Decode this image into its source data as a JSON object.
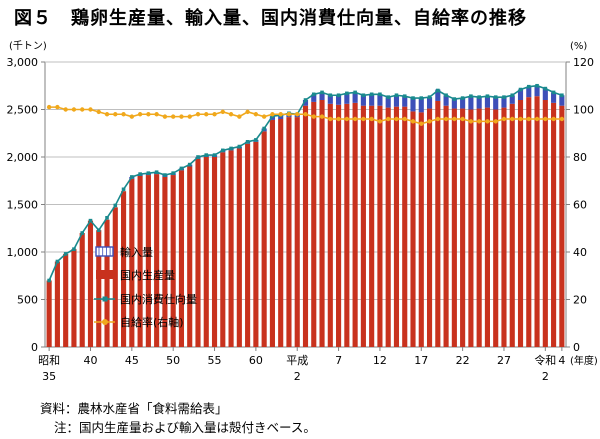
{
  "figure": {
    "title": "図５　鶏卵生産量、輸入量、国内消費仕向量、自給率の推移",
    "source_label": "資料：",
    "source_text": "農林水産省「食料需給表」",
    "note_label": "注：",
    "note_text": "国内生産量および輸入量は殻付きベース。"
  },
  "colors": {
    "production": "#c8321e",
    "imports": "#3d4fb8",
    "consumption": "#1a8a8e",
    "self_sufficiency": "#f0a81c",
    "grid": "#bfbfbf",
    "axis": "#808080"
  },
  "chart_data": {
    "type": "bar",
    "stacked": true,
    "years_label_note": "Japanese fiscal years from Showa 35 (1960) to Reiwa 4 (2022)",
    "x": [
      1960,
      1961,
      1962,
      1963,
      1964,
      1965,
      1966,
      1967,
      1968,
      1969,
      1970,
      1971,
      1972,
      1973,
      1974,
      1975,
      1976,
      1977,
      1978,
      1979,
      1980,
      1981,
      1982,
      1983,
      1984,
      1985,
      1986,
      1987,
      1988,
      1989,
      1990,
      1991,
      1992,
      1993,
      1994,
      1995,
      1996,
      1997,
      1998,
      1999,
      2000,
      2001,
      2002,
      2003,
      2004,
      2005,
      2006,
      2007,
      2008,
      2009,
      2010,
      2011,
      2012,
      2013,
      2014,
      2015,
      2016,
      2017,
      2018,
      2019,
      2020,
      2021,
      2022
    ],
    "xtick_labels": [
      {
        "x": 1960,
        "line1": "昭和",
        "line2": "35"
      },
      {
        "x": 1965,
        "line1": "40",
        "line2": ""
      },
      {
        "x": 1970,
        "line1": "45",
        "line2": ""
      },
      {
        "x": 1975,
        "line1": "50",
        "line2": ""
      },
      {
        "x": 1980,
        "line1": "55",
        "line2": ""
      },
      {
        "x": 1985,
        "line1": "60",
        "line2": ""
      },
      {
        "x": 1990,
        "line1": "平成",
        "line2": "2"
      },
      {
        "x": 1995,
        "line1": "7",
        "line2": ""
      },
      {
        "x": 2000,
        "line1": "12",
        "line2": ""
      },
      {
        "x": 2005,
        "line1": "17",
        "line2": ""
      },
      {
        "x": 2010,
        "line1": "22",
        "line2": ""
      },
      {
        "x": 2015,
        "line1": "27",
        "line2": ""
      },
      {
        "x": 2020,
        "line1": "令和",
        "line2": "2"
      },
      {
        "x": 2022,
        "line1": "4",
        "line2": ""
      }
    ],
    "xlabel": "(年度)",
    "ylabel_left": "(千トン)",
    "ylabel_right": "(%)",
    "ylim_left": [
      0,
      3000
    ],
    "yticks_left": [
      0,
      500,
      1000,
      1500,
      2000,
      2500,
      3000
    ],
    "ytick_labels_left": [
      "0",
      "500",
      "1,000",
      "1,500",
      "2,000",
      "2,500",
      "3,000"
    ],
    "ylim_right": [
      0,
      120
    ],
    "yticks_right": [
      0,
      20,
      40,
      60,
      80,
      100,
      120
    ],
    "ytick_labels_right": [
      "0",
      "20",
      "40",
      "60",
      "80",
      "100",
      "120"
    ],
    "grid": true,
    "legend_position": "bottom-left",
    "series": [
      {
        "name": "輸入量",
        "type": "bar",
        "axis": "left",
        "values": [
          0,
          0,
          0,
          0,
          0,
          0,
          0,
          0,
          0,
          0,
          20,
          20,
          20,
          20,
          20,
          20,
          20,
          20,
          20,
          20,
          20,
          20,
          20,
          20,
          20,
          20,
          30,
          40,
          40,
          40,
          40,
          60,
          80,
          80,
          90,
          100,
          110,
          110,
          110,
          120,
          120,
          110,
          120,
          110,
          140,
          150,
          120,
          120,
          110,
          100,
          110,
          140,
          120,
          120,
          130,
          110,
          90,
          110,
          110,
          110,
          120,
          110,
          110
        ]
      },
      {
        "name": "国内生産量",
        "type": "bar",
        "axis": "left",
        "values": [
          700,
          900,
          980,
          1030,
          1200,
          1330,
          1230,
          1340,
          1470,
          1640,
          1770,
          1800,
          1810,
          1820,
          1790,
          1810,
          1860,
          1900,
          1980,
          2000,
          2000,
          2050,
          2070,
          2090,
          2140,
          2160,
          2270,
          2390,
          2400,
          2420,
          2420,
          2540,
          2580,
          2600,
          2560,
          2550,
          2560,
          2570,
          2540,
          2540,
          2540,
          2520,
          2530,
          2530,
          2480,
          2470,
          2510,
          2590,
          2540,
          2510,
          2510,
          2500,
          2510,
          2520,
          2500,
          2520,
          2560,
          2600,
          2630,
          2640,
          2600,
          2570,
          2540
        ]
      },
      {
        "name": "国内消費仕向量",
        "type": "line",
        "axis": "left",
        "values": [
          700,
          900,
          980,
          1030,
          1200,
          1330,
          1230,
          1360,
          1490,
          1660,
          1790,
          1820,
          1830,
          1840,
          1810,
          1830,
          1880,
          1920,
          2000,
          2020,
          2020,
          2070,
          2090,
          2110,
          2160,
          2180,
          2300,
          2430,
          2440,
          2460,
          2450,
          2600,
          2660,
          2680,
          2650,
          2650,
          2670,
          2680,
          2650,
          2660,
          2660,
          2630,
          2650,
          2640,
          2620,
          2620,
          2630,
          2700,
          2650,
          2610,
          2620,
          2640,
          2630,
          2640,
          2630,
          2630,
          2650,
          2710,
          2740,
          2750,
          2720,
          2680,
          2650
        ]
      },
      {
        "name": "自給率(右軸)",
        "type": "line",
        "axis": "right",
        "values": [
          101,
          101,
          100,
          100,
          100,
          100,
          99,
          98,
          98,
          98,
          97,
          98,
          98,
          98,
          97,
          97,
          97,
          97,
          98,
          98,
          98,
          99,
          98,
          97,
          99,
          98,
          97,
          98,
          98,
          98,
          98,
          98,
          97,
          97,
          96,
          96,
          96,
          96,
          96,
          96,
          95,
          96,
          96,
          96,
          95,
          94,
          95,
          96,
          96,
          96,
          96,
          95,
          95,
          95,
          95,
          96,
          96,
          96,
          96,
          96,
          96,
          96,
          96
        ]
      }
    ]
  }
}
